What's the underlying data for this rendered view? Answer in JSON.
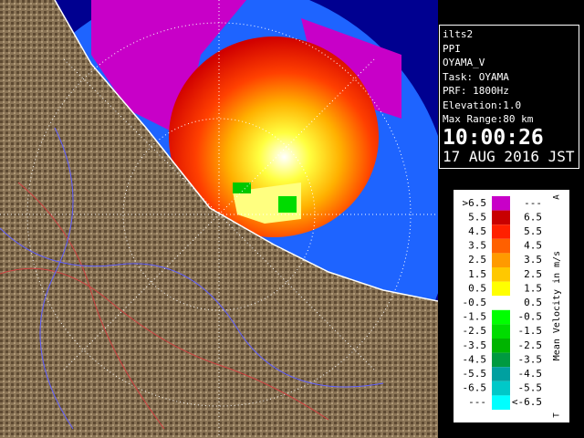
{
  "info": {
    "lines": [
      "ilts2",
      "PPI",
      "OYAMA_V",
      "Task: OYAMA",
      "PRF: 1800Hz",
      "Elevation:1.0",
      "Max Range:80 km"
    ],
    "time": "10:00:26",
    "date": "17 AUG 2016 JST"
  },
  "legend": {
    "title": "Mean Velocity in m/s",
    "top_mark": "A",
    "bottom_mark": "T",
    "rows": [
      {
        "left": ">6.5",
        "right": "---",
        "color": "#c800c8"
      },
      {
        "left": "5.5",
        "right": "6.5",
        "color": "#c80000"
      },
      {
        "left": "4.5",
        "right": "5.5",
        "color": "#ff2000"
      },
      {
        "left": "3.5",
        "right": "4.5",
        "color": "#ff6000"
      },
      {
        "left": "2.5",
        "right": "3.5",
        "color": "#ff9a00"
      },
      {
        "left": "1.5",
        "right": "2.5",
        "color": "#ffc800"
      },
      {
        "left": "0.5",
        "right": "1.5",
        "color": "#ffff00"
      },
      {
        "left": "-0.5",
        "right": "0.5",
        "color": "#ffffff"
      },
      {
        "left": "-1.5",
        "right": "-0.5",
        "color": "#00ff00"
      },
      {
        "left": "-2.5",
        "right": "-1.5",
        "color": "#00dc00"
      },
      {
        "left": "-3.5",
        "right": "-2.5",
        "color": "#00b400"
      },
      {
        "left": "-4.5",
        "right": "-3.5",
        "color": "#009a40"
      },
      {
        "left": "-5.5",
        "right": "-4.5",
        "color": "#00a0a0"
      },
      {
        "left": "-6.5",
        "right": "-5.5",
        "color": "#00c8c8"
      },
      {
        "left": "---",
        "right": "<-6.5",
        "color": "#00ffff"
      }
    ]
  }
}
